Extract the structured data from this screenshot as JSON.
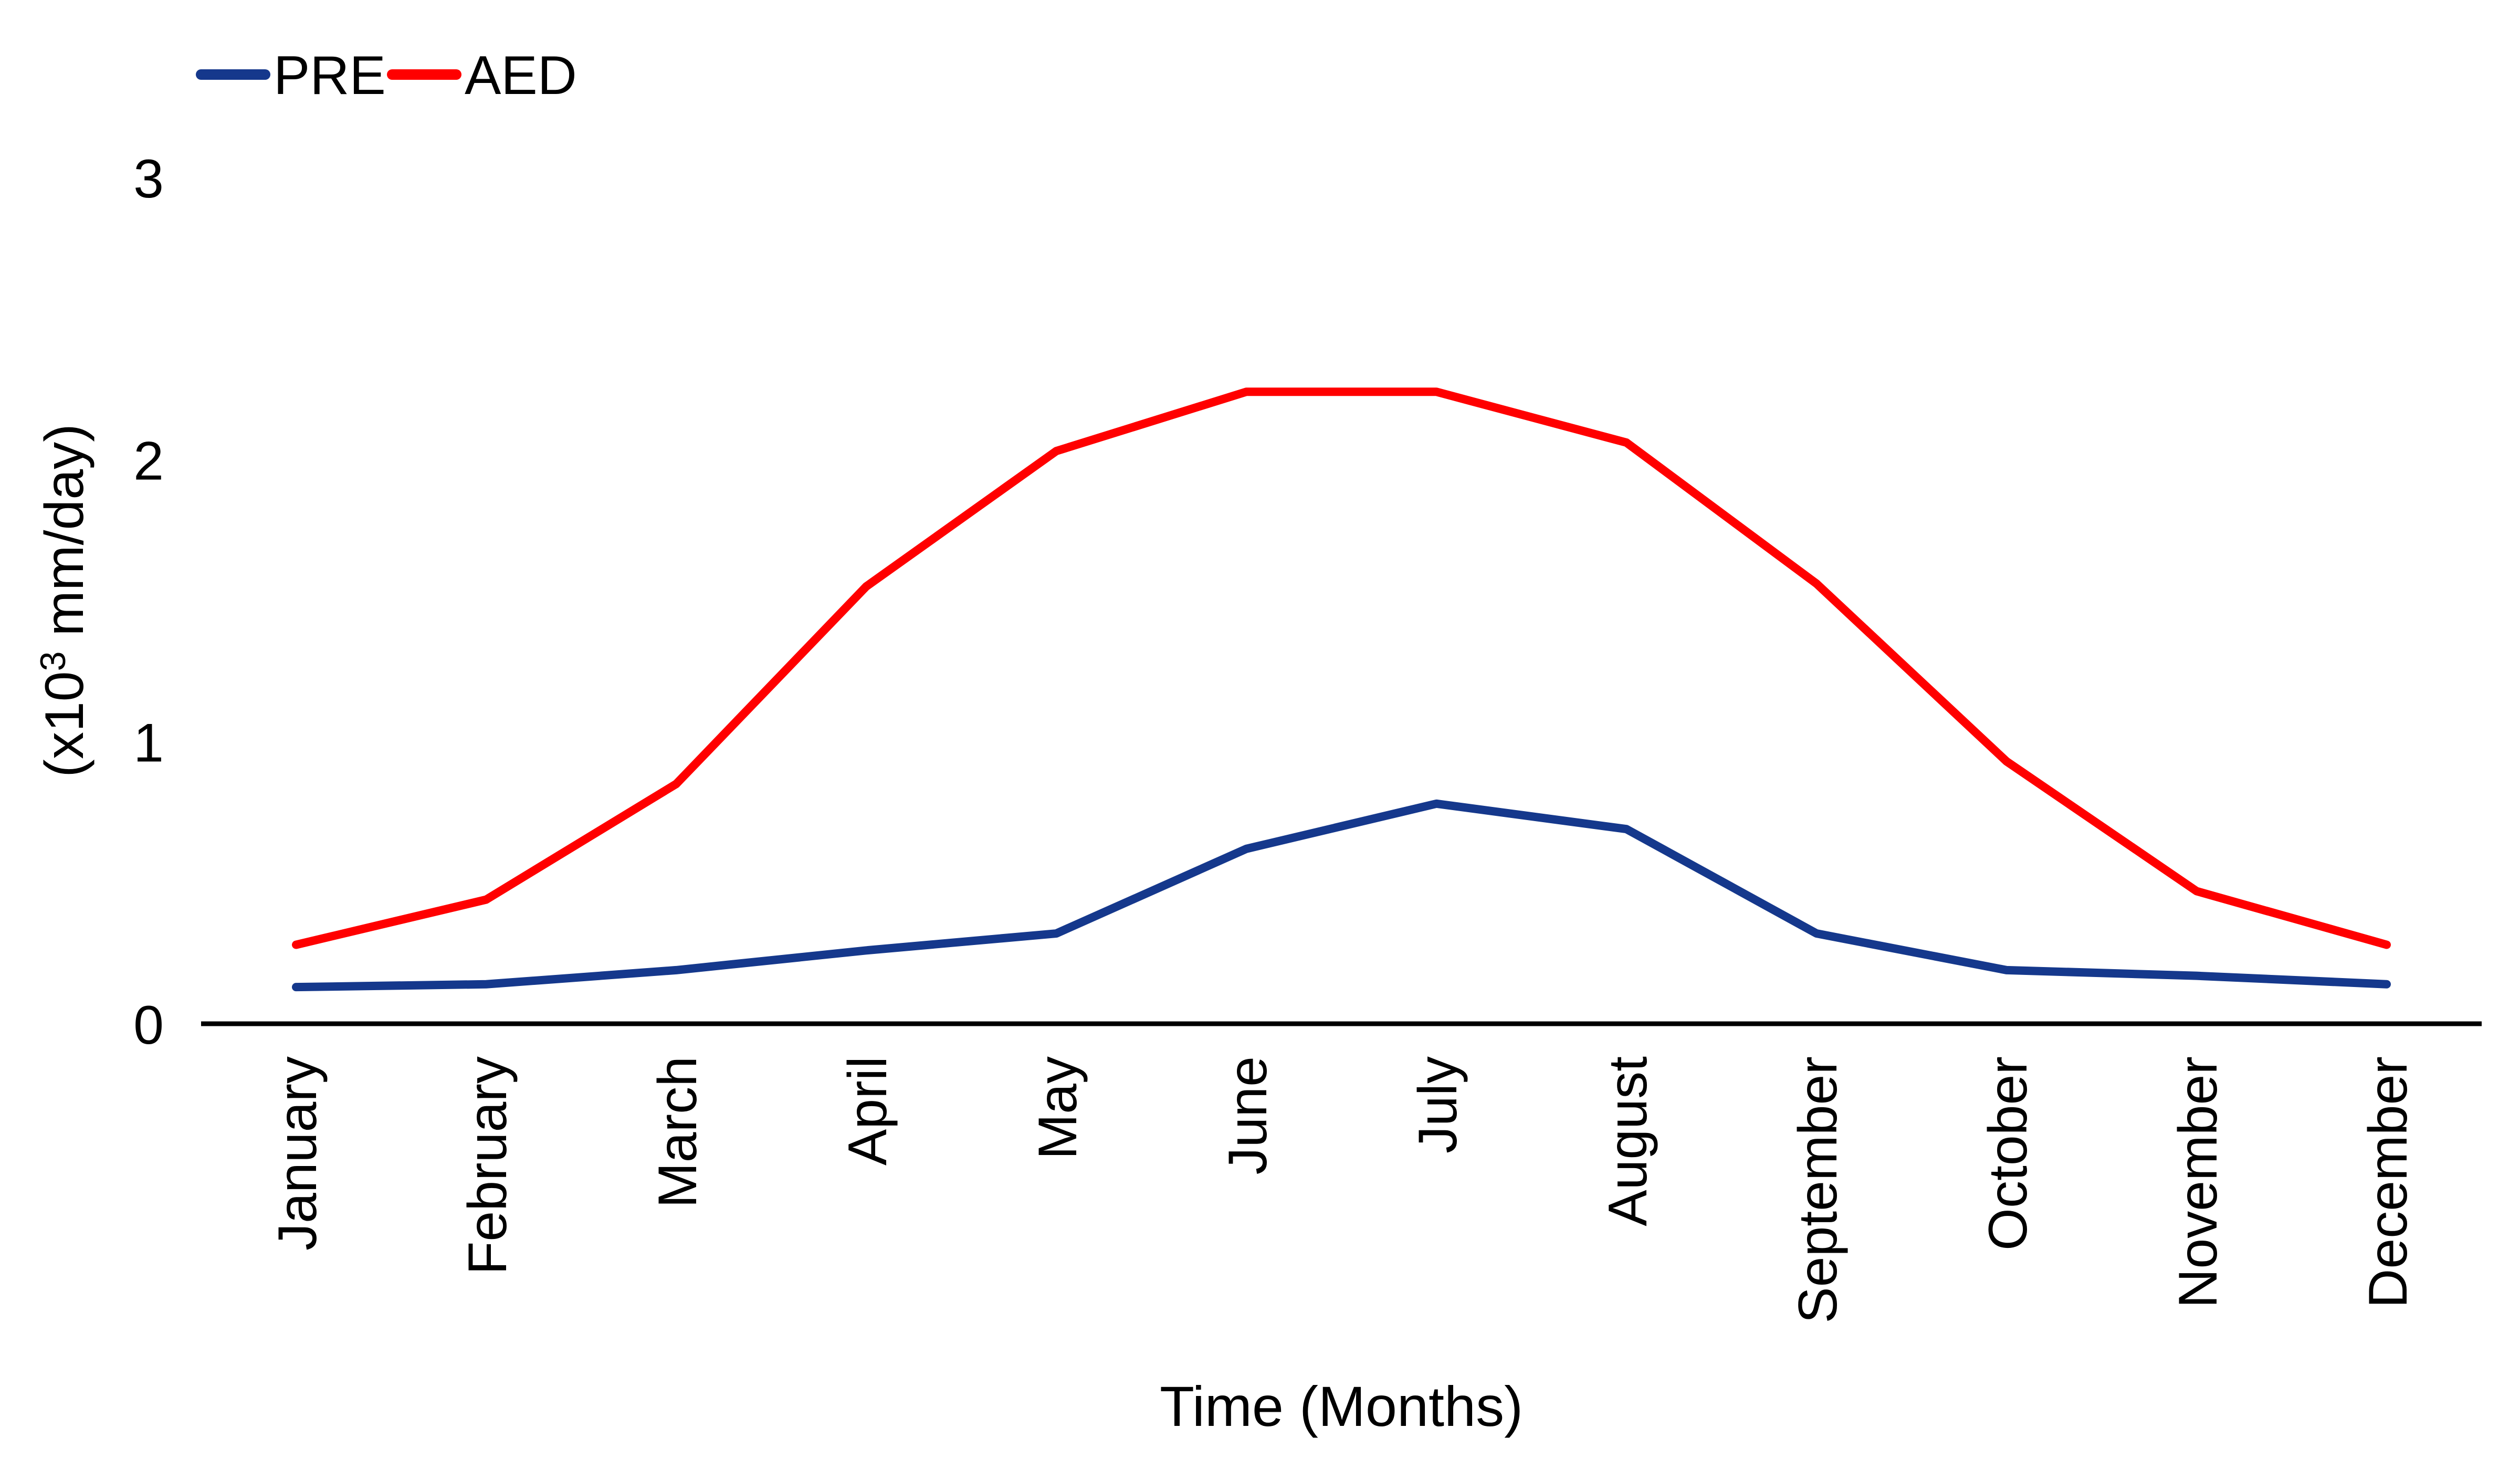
{
  "chart_data": {
    "type": "line",
    "title": "",
    "categories": [
      "January",
      "February",
      "March",
      "April",
      "May",
      "June",
      "July",
      "August",
      "September",
      "October",
      "November",
      "December"
    ],
    "series": [
      {
        "name": "PRE",
        "color": "#15388C",
        "values": [
          0.13,
          0.14,
          0.19,
          0.26,
          0.32,
          0.62,
          0.78,
          0.69,
          0.32,
          0.19,
          0.17,
          0.14
        ]
      },
      {
        "name": "AED",
        "color": "#FF0000",
        "values": [
          0.28,
          0.44,
          0.85,
          1.55,
          2.03,
          2.24,
          2.24,
          2.06,
          1.56,
          0.93,
          0.47,
          0.28
        ]
      }
    ],
    "xlabel": "Time (Months)",
    "ylabel_text": "(x10³ mm/day)",
    "ylabel_parts": {
      "prefix": "(x10",
      "sup": "3",
      "suffix": " mm/day)"
    },
    "ytick_labels": [
      "0",
      "1",
      "2",
      "3"
    ],
    "yticks": [
      0,
      1,
      2,
      3
    ],
    "ylim": [
      0,
      3
    ],
    "grid": false,
    "legend_position": "top-left",
    "axis_color": "#000000",
    "text_color": "#000000"
  }
}
